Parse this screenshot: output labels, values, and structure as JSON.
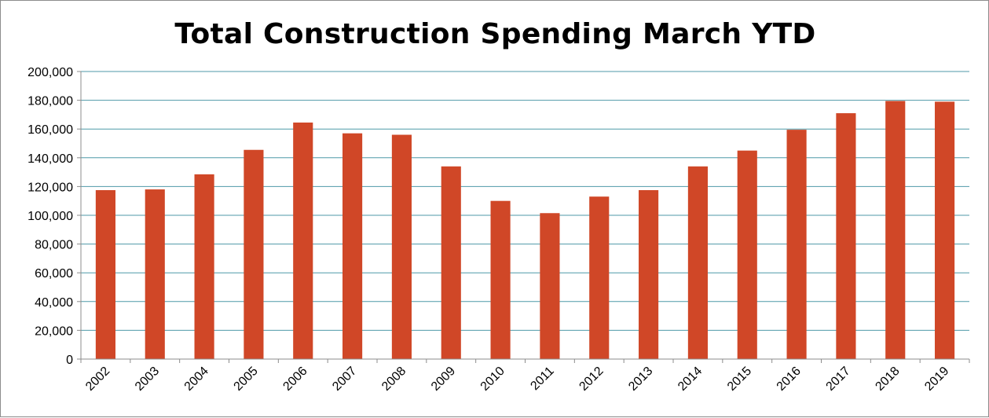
{
  "chart_data": {
    "type": "bar",
    "title": "Total Construction Spending March YTD",
    "xlabel": "",
    "ylabel": "",
    "categories": [
      "2002",
      "2003",
      "2004",
      "2005",
      "2006",
      "2007",
      "2008",
      "2009",
      "2010",
      "2011",
      "2012",
      "2013",
      "2014",
      "2015",
      "2016",
      "2017",
      "2018",
      "2019"
    ],
    "values": [
      117500,
      118000,
      128500,
      145500,
      164500,
      157000,
      156000,
      134000,
      110000,
      101500,
      113000,
      117500,
      134000,
      145000,
      159500,
      171000,
      179500,
      179000
    ],
    "ylim": [
      0,
      200000
    ],
    "yticks": [
      "0",
      "20,000",
      "40,000",
      "60,000",
      "80,000",
      "100,000",
      "120,000",
      "140,000",
      "160,000",
      "180,000",
      "200,000"
    ],
    "grid": true,
    "legend": "none",
    "colors": {
      "bar": "#d04727",
      "grid": "#4f9aa8",
      "axis": "#8c8c8c"
    }
  }
}
